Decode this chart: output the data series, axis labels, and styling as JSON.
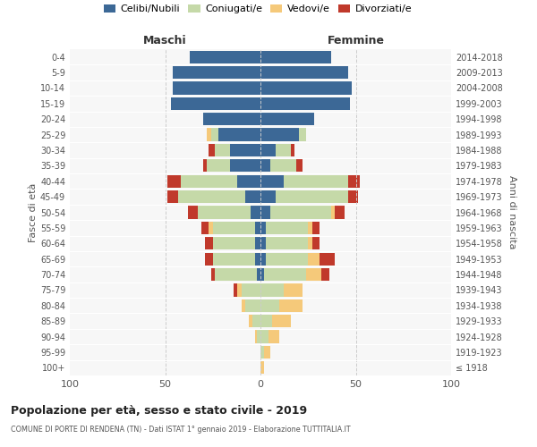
{
  "age_groups": [
    "100+",
    "95-99",
    "90-94",
    "85-89",
    "80-84",
    "75-79",
    "70-74",
    "65-69",
    "60-64",
    "55-59",
    "50-54",
    "45-49",
    "40-44",
    "35-39",
    "30-34",
    "25-29",
    "20-24",
    "15-19",
    "10-14",
    "5-9",
    "0-4"
  ],
  "birth_years": [
    "≤ 1918",
    "1919-1923",
    "1924-1928",
    "1929-1933",
    "1934-1938",
    "1939-1943",
    "1944-1948",
    "1949-1953",
    "1954-1958",
    "1959-1963",
    "1964-1968",
    "1969-1973",
    "1974-1978",
    "1979-1983",
    "1984-1988",
    "1989-1993",
    "1994-1998",
    "1999-2003",
    "2004-2008",
    "2009-2013",
    "2014-2018"
  ],
  "males": {
    "celibi": [
      0,
      0,
      0,
      0,
      0,
      0,
      2,
      3,
      3,
      3,
      5,
      8,
      12,
      16,
      16,
      22,
      30,
      47,
      46,
      46,
      37
    ],
    "coniugati": [
      0,
      0,
      2,
      4,
      8,
      10,
      22,
      22,
      22,
      22,
      28,
      35,
      30,
      12,
      8,
      4,
      0,
      0,
      0,
      0,
      0
    ],
    "vedovi": [
      0,
      0,
      1,
      2,
      2,
      2,
      0,
      0,
      0,
      2,
      0,
      0,
      0,
      0,
      0,
      2,
      0,
      0,
      0,
      0,
      0
    ],
    "divorziati": [
      0,
      0,
      0,
      0,
      0,
      2,
      2,
      4,
      4,
      4,
      5,
      6,
      7,
      2,
      3,
      0,
      0,
      0,
      0,
      0,
      0
    ]
  },
  "females": {
    "nubili": [
      0,
      0,
      0,
      0,
      0,
      0,
      2,
      3,
      3,
      3,
      5,
      8,
      12,
      5,
      8,
      20,
      28,
      47,
      48,
      46,
      37
    ],
    "coniugate": [
      0,
      2,
      4,
      6,
      10,
      12,
      22,
      22,
      22,
      22,
      32,
      38,
      34,
      14,
      8,
      4,
      0,
      0,
      0,
      0,
      0
    ],
    "vedove": [
      2,
      3,
      6,
      10,
      12,
      10,
      8,
      6,
      2,
      2,
      2,
      0,
      0,
      0,
      0,
      0,
      0,
      0,
      0,
      0,
      0
    ],
    "divorziate": [
      0,
      0,
      0,
      0,
      0,
      0,
      4,
      8,
      4,
      4,
      5,
      5,
      6,
      3,
      2,
      0,
      0,
      0,
      0,
      0,
      0
    ]
  },
  "colors": {
    "celibi": "#3c6896",
    "coniugati": "#c5d9a8",
    "vedovi": "#f5c97a",
    "divorziati": "#c0392b"
  },
  "title": "Popolazione per età, sesso e stato civile - 2019",
  "subtitle": "COMUNE DI PORTE DI RENDENA (TN) - Dati ISTAT 1° gennaio 2019 - Elaborazione TUTTITALIA.IT",
  "xlabel_left": "Maschi",
  "xlabel_right": "Femmine",
  "ylabel_left": "Fasce di età",
  "ylabel_right": "Anni di nascita",
  "xlim": 100,
  "background_color": "#ffffff",
  "legend_labels": [
    "Celibi/Nubili",
    "Coniugati/e",
    "Vedovi/e",
    "Divorziati/e"
  ],
  "grid_color": "#dddddd",
  "ax_bg": "#f7f7f7"
}
